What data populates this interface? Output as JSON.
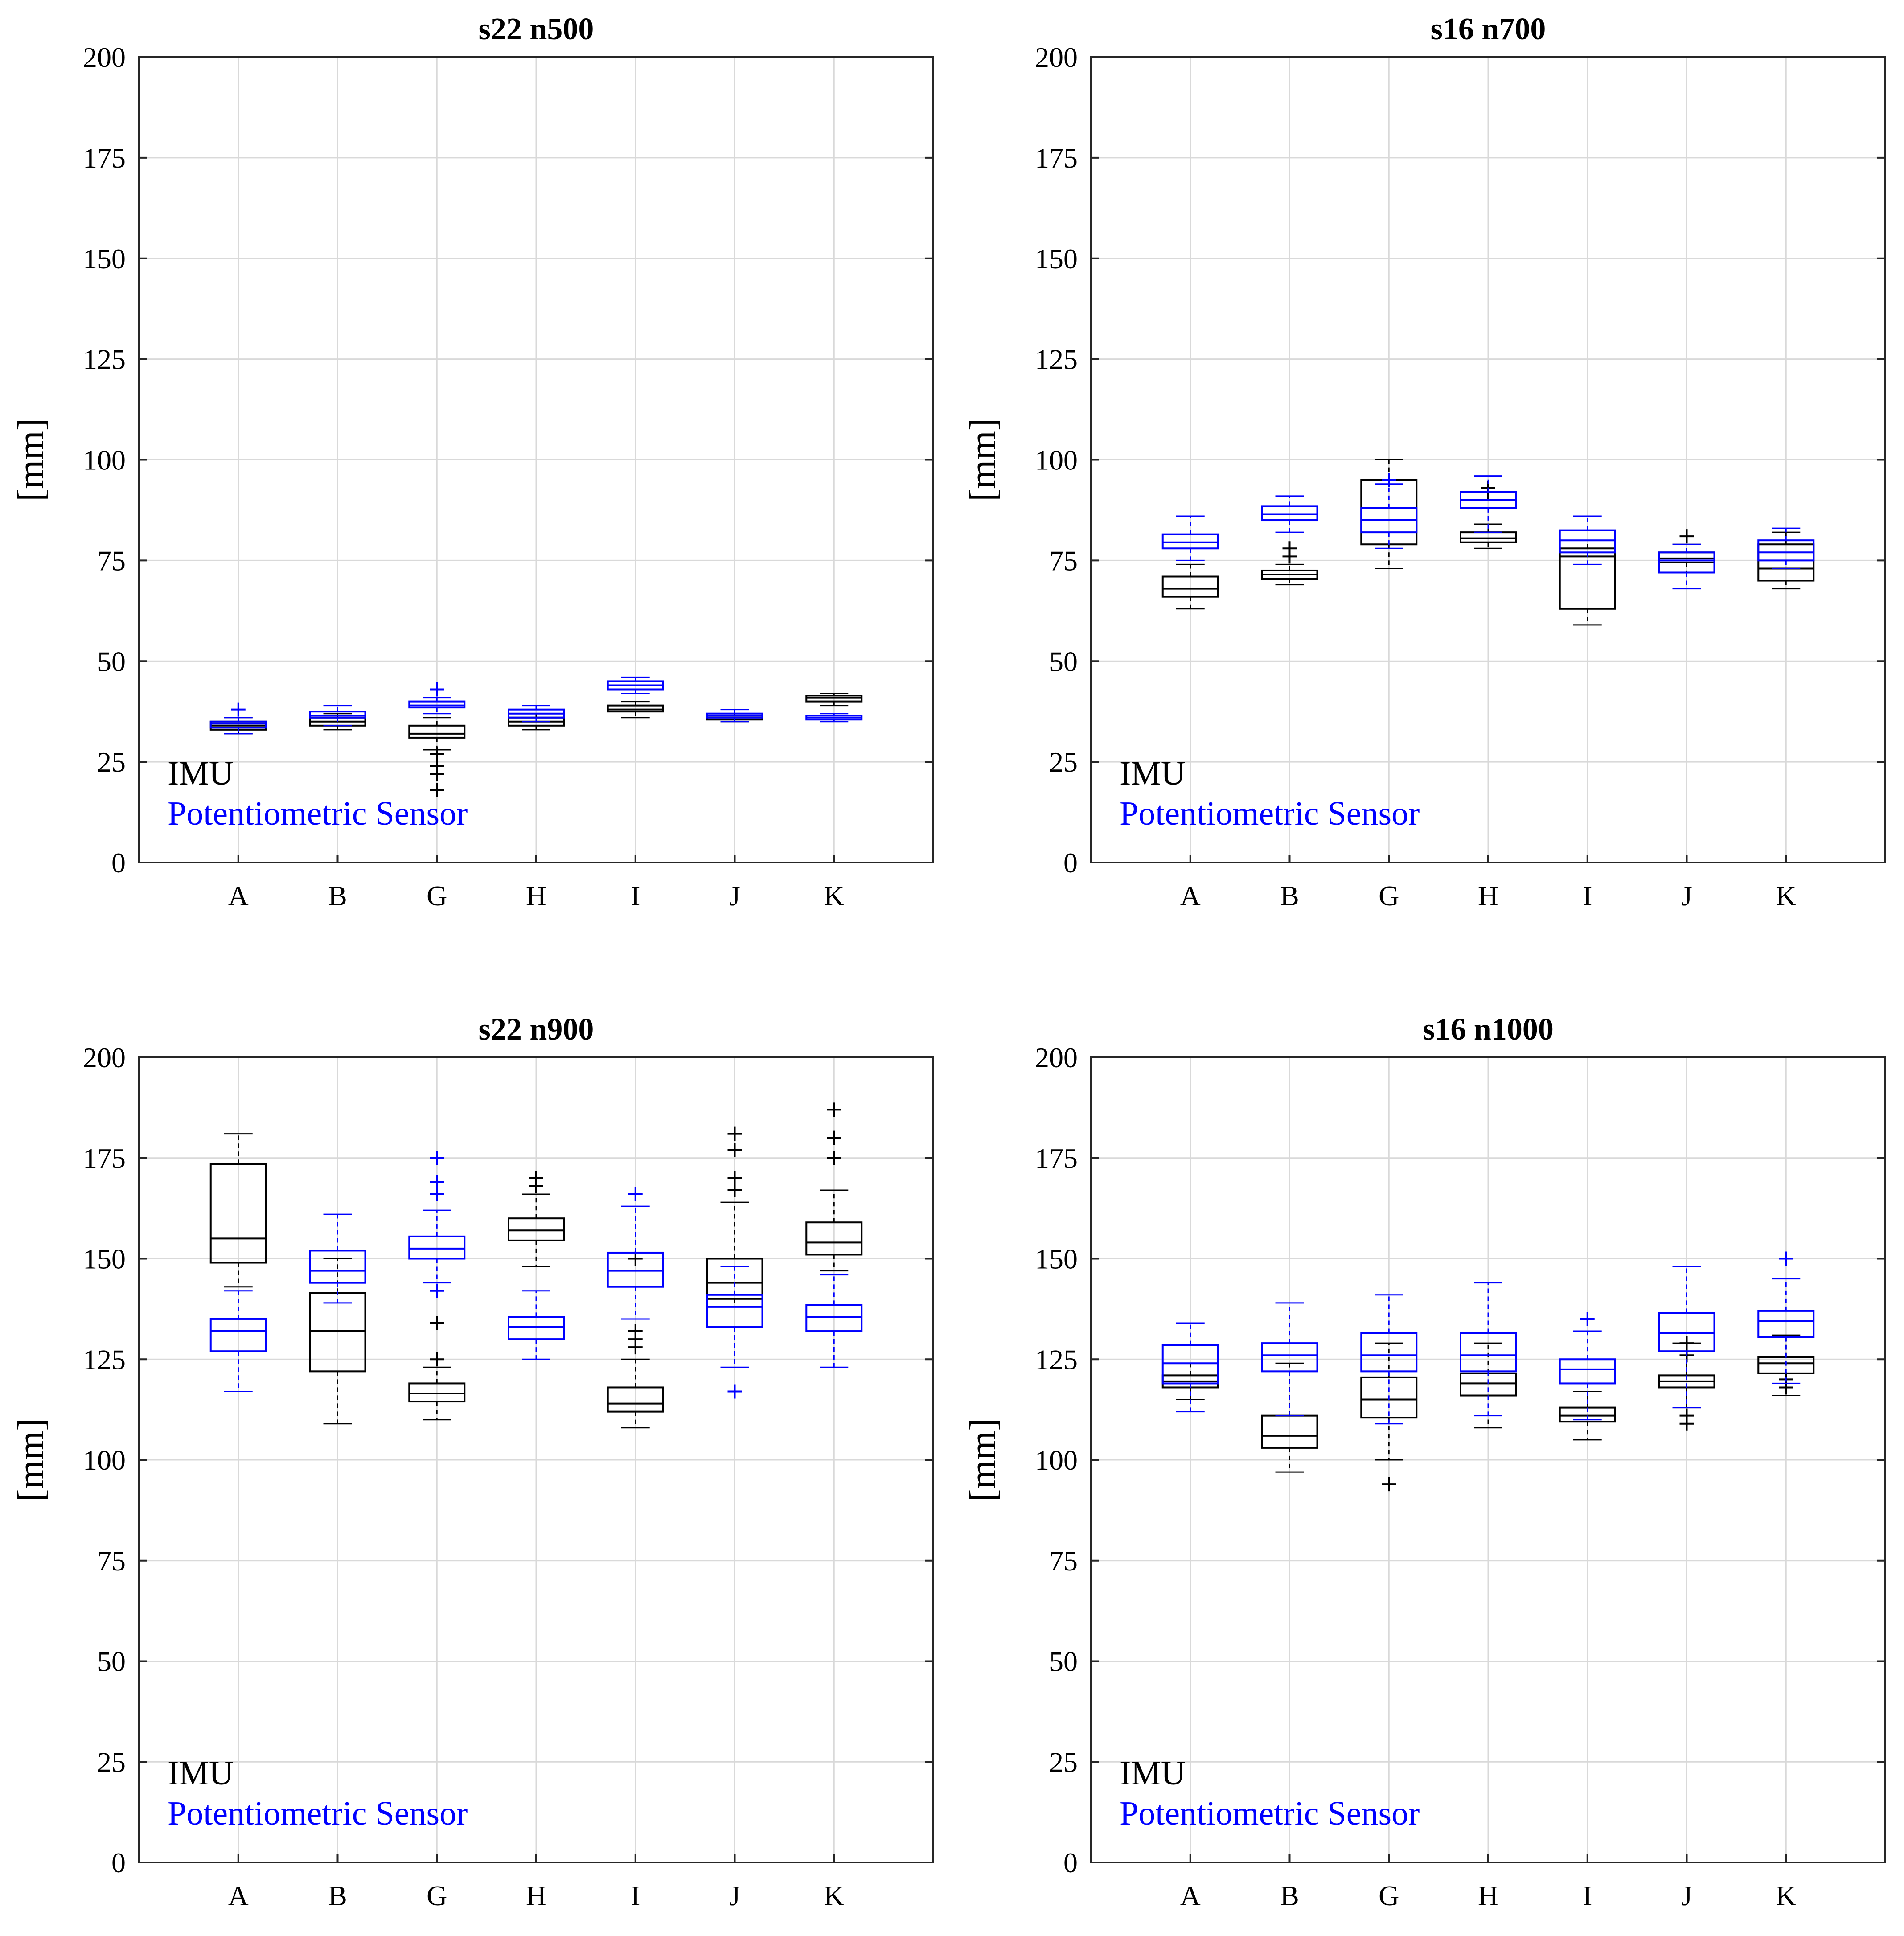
{
  "legend": {
    "imu": "IMU",
    "pot": "Potentiometric Sensor"
  },
  "colors": {
    "imu": "#000000",
    "pot": "#0000ff",
    "grid": "#d9d9d9",
    "axis": "#262626"
  },
  "chart_data": [
    {
      "type": "boxplot",
      "title": "s22 n500",
      "ylabel": "[mm]",
      "ylim": [
        0,
        200
      ],
      "yticks": [
        0,
        25,
        50,
        75,
        100,
        125,
        150,
        175,
        200
      ],
      "categories": [
        "A",
        "B",
        "G",
        "H",
        "I",
        "J",
        "K"
      ],
      "series": [
        {
          "name": "IMU",
          "boxes": [
            {
              "min": 32,
              "q1": 33,
              "median": 34,
              "q3": 35,
              "max": 36,
              "outliers": []
            },
            {
              "min": 33,
              "q1": 34,
              "median": 35,
              "q3": 36,
              "max": 37,
              "outliers": []
            },
            {
              "min": 28,
              "q1": 31,
              "median": 32,
              "q3": 34,
              "max": 36,
              "outliers": [
                27,
                24,
                22,
                18
              ]
            },
            {
              "min": 33,
              "q1": 34,
              "median": 35,
              "q3": 36,
              "max": 37,
              "outliers": []
            },
            {
              "min": 36,
              "q1": 37.5,
              "median": 38,
              "q3": 39,
              "max": 40,
              "outliers": []
            },
            {
              "min": 35,
              "q1": 35.5,
              "median": 36,
              "q3": 36.5,
              "max": 37,
              "outliers": []
            },
            {
              "min": 39,
              "q1": 40,
              "median": 41,
              "q3": 41.5,
              "max": 42,
              "outliers": []
            }
          ]
        },
        {
          "name": "Potentiometric Sensor",
          "boxes": [
            {
              "min": 32,
              "q1": 33.5,
              "median": 34.5,
              "q3": 35,
              "max": 36,
              "outliers": [
                38
              ]
            },
            {
              "min": 34,
              "q1": 36,
              "median": 36.5,
              "q3": 37.5,
              "max": 39,
              "outliers": []
            },
            {
              "min": 37,
              "q1": 38.5,
              "median": 39,
              "q3": 40,
              "max": 41,
              "outliers": [
                43
              ]
            },
            {
              "min": 35,
              "q1": 36,
              "median": 37,
              "q3": 38,
              "max": 39,
              "outliers": []
            },
            {
              "min": 42,
              "q1": 43,
              "median": 44,
              "q3": 45,
              "max": 46,
              "outliers": []
            },
            {
              "min": 35,
              "q1": 36,
              "median": 36.5,
              "q3": 37,
              "max": 38,
              "outliers": []
            },
            {
              "min": 35,
              "q1": 35.5,
              "median": 36,
              "q3": 36.5,
              "max": 37,
              "outliers": []
            }
          ]
        }
      ]
    },
    {
      "type": "boxplot",
      "title": "s16 n700",
      "ylabel": "[mm]",
      "ylim": [
        0,
        200
      ],
      "yticks": [
        0,
        25,
        50,
        75,
        100,
        125,
        150,
        175,
        200
      ],
      "categories": [
        "A",
        "B",
        "G",
        "H",
        "I",
        "J",
        "K"
      ],
      "series": [
        {
          "name": "IMU",
          "boxes": [
            {
              "min": 63,
              "q1": 66,
              "median": 68,
              "q3": 71,
              "max": 74,
              "outliers": []
            },
            {
              "min": 69,
              "q1": 70.5,
              "median": 71.5,
              "q3": 72.5,
              "max": 74,
              "outliers": [
                76,
                78
              ]
            },
            {
              "min": 73,
              "q1": 79,
              "median": 88,
              "q3": 95,
              "max": 100,
              "outliers": []
            },
            {
              "min": 78,
              "q1": 79.5,
              "median": 80.5,
              "q3": 82,
              "max": 84,
              "outliers": [
                92,
                93
              ]
            },
            {
              "min": 59,
              "q1": 63,
              "median": 76,
              "q3": 78,
              "max": 80,
              "outliers": []
            },
            {
              "min": 72,
              "q1": 74.5,
              "median": 75.5,
              "q3": 77,
              "max": 79,
              "outliers": [
                81
              ]
            },
            {
              "min": 68,
              "q1": 70,
              "median": 73,
              "q3": 79,
              "max": 82,
              "outliers": []
            }
          ]
        },
        {
          "name": "Potentiometric Sensor",
          "boxes": [
            {
              "min": 75,
              "q1": 78,
              "median": 79.5,
              "q3": 81.5,
              "max": 86,
              "outliers": []
            },
            {
              "min": 82,
              "q1": 85,
              "median": 86.5,
              "q3": 88.5,
              "max": 91,
              "outliers": []
            },
            {
              "min": 78,
              "q1": 82,
              "median": 85,
              "q3": 88,
              "max": 94,
              "outliers": [
                95
              ]
            },
            {
              "min": 82,
              "q1": 88,
              "median": 90,
              "q3": 92,
              "max": 96,
              "outliers": []
            },
            {
              "min": 74,
              "q1": 77,
              "median": 80,
              "q3": 82.5,
              "max": 86,
              "outliers": []
            },
            {
              "min": 68,
              "q1": 72,
              "median": 75,
              "q3": 77,
              "max": 79,
              "outliers": []
            },
            {
              "min": 73,
              "q1": 75,
              "median": 77,
              "q3": 80,
              "max": 83,
              "outliers": []
            }
          ]
        }
      ]
    },
    {
      "type": "boxplot",
      "title": "s22 n900",
      "ylabel": "[mm]",
      "ylim": [
        0,
        200
      ],
      "yticks": [
        0,
        25,
        50,
        75,
        100,
        125,
        150,
        175,
        200
      ],
      "categories": [
        "A",
        "B",
        "G",
        "H",
        "I",
        "J",
        "K"
      ],
      "series": [
        {
          "name": "IMU",
          "boxes": [
            {
              "min": 143,
              "q1": 149,
              "median": 155,
              "q3": 173.5,
              "max": 181,
              "outliers": []
            },
            {
              "min": 109,
              "q1": 122,
              "median": 132,
              "q3": 141.5,
              "max": 150,
              "outliers": []
            },
            {
              "min": 110,
              "q1": 114.5,
              "median": 116.5,
              "q3": 119,
              "max": 123,
              "outliers": [
                125,
                134
              ]
            },
            {
              "min": 148,
              "q1": 154.5,
              "median": 157,
              "q3": 160,
              "max": 166,
              "outliers": [
                168,
                170
              ]
            },
            {
              "min": 108,
              "q1": 112,
              "median": 114,
              "q3": 118,
              "max": 125,
              "outliers": [
                128,
                130,
                132,
                150
              ]
            },
            {
              "min": 138,
              "q1": 140,
              "median": 144,
              "q3": 150,
              "max": 164,
              "outliers": [
                167,
                170,
                177,
                181
              ]
            },
            {
              "min": 147,
              "q1": 151,
              "median": 154,
              "q3": 159,
              "max": 167,
              "outliers": [
                175,
                180,
                187
              ]
            }
          ]
        },
        {
          "name": "Potentiometric Sensor",
          "boxes": [
            {
              "min": 117,
              "q1": 127,
              "median": 132,
              "q3": 135,
              "max": 142,
              "outliers": []
            },
            {
              "min": 139,
              "q1": 144,
              "median": 147,
              "q3": 152,
              "max": 161,
              "outliers": []
            },
            {
              "min": 144,
              "q1": 150,
              "median": 152.5,
              "q3": 155.5,
              "max": 162,
              "outliers": [
                142,
                166,
                169,
                175
              ]
            },
            {
              "min": 125,
              "q1": 130,
              "median": 133,
              "q3": 135.5,
              "max": 142,
              "outliers": []
            },
            {
              "min": 135,
              "q1": 143,
              "median": 147,
              "q3": 151.5,
              "max": 163,
              "outliers": [
                166
              ]
            },
            {
              "min": 123,
              "q1": 133,
              "median": 138,
              "q3": 141,
              "max": 148,
              "outliers": [
                117
              ]
            },
            {
              "min": 123,
              "q1": 132,
              "median": 135.5,
              "q3": 138.5,
              "max": 146,
              "outliers": []
            }
          ]
        }
      ]
    },
    {
      "type": "boxplot",
      "title": "s16 n1000",
      "ylabel": "[mm]",
      "ylim": [
        0,
        200
      ],
      "yticks": [
        0,
        25,
        50,
        75,
        100,
        125,
        150,
        175,
        200
      ],
      "categories": [
        "A",
        "B",
        "G",
        "H",
        "I",
        "J",
        "K"
      ],
      "series": [
        {
          "name": "IMU",
          "boxes": [
            {
              "min": 115,
              "q1": 118,
              "median": 119.5,
              "q3": 121,
              "max": 124,
              "outliers": []
            },
            {
              "min": 97,
              "q1": 103,
              "median": 106,
              "q3": 111,
              "max": 124,
              "outliers": []
            },
            {
              "min": 100,
              "q1": 110.5,
              "median": 115,
              "q3": 120.5,
              "max": 129,
              "outliers": [
                94
              ]
            },
            {
              "min": 108,
              "q1": 116,
              "median": 119,
              "q3": 121.5,
              "max": 129,
              "outliers": []
            },
            {
              "min": 105,
              "q1": 109.5,
              "median": 111,
              "q3": 113,
              "max": 117,
              "outliers": []
            },
            {
              "min": 113,
              "q1": 118,
              "median": 119.5,
              "q3": 121,
              "max": 129,
              "outliers": [
                109,
                111,
                126,
                129
              ]
            },
            {
              "min": 116,
              "q1": 121.5,
              "median": 124,
              "q3": 125.5,
              "max": 131,
              "outliers": [
                118,
                120
              ]
            }
          ]
        },
        {
          "name": "Potentiometric Sensor",
          "boxes": [
            {
              "min": 112,
              "q1": 119,
              "median": 124,
              "q3": 128.5,
              "max": 134,
              "outliers": []
            },
            {
              "min": 111,
              "q1": 122,
              "median": 126,
              "q3": 129,
              "max": 139,
              "outliers": []
            },
            {
              "min": 109,
              "q1": 122,
              "median": 126,
              "q3": 131.5,
              "max": 141,
              "outliers": []
            },
            {
              "min": 111,
              "q1": 122,
              "median": 126,
              "q3": 131.5,
              "max": 144,
              "outliers": []
            },
            {
              "min": 110,
              "q1": 119,
              "median": 122.5,
              "q3": 125,
              "max": 132,
              "outliers": [
                135
              ]
            },
            {
              "min": 113,
              "q1": 127,
              "median": 131.5,
              "q3": 136.5,
              "max": 148,
              "outliers": []
            },
            {
              "min": 119,
              "q1": 130.5,
              "median": 134.5,
              "q3": 137,
              "max": 145,
              "outliers": [
                150
              ]
            }
          ]
        }
      ]
    }
  ]
}
